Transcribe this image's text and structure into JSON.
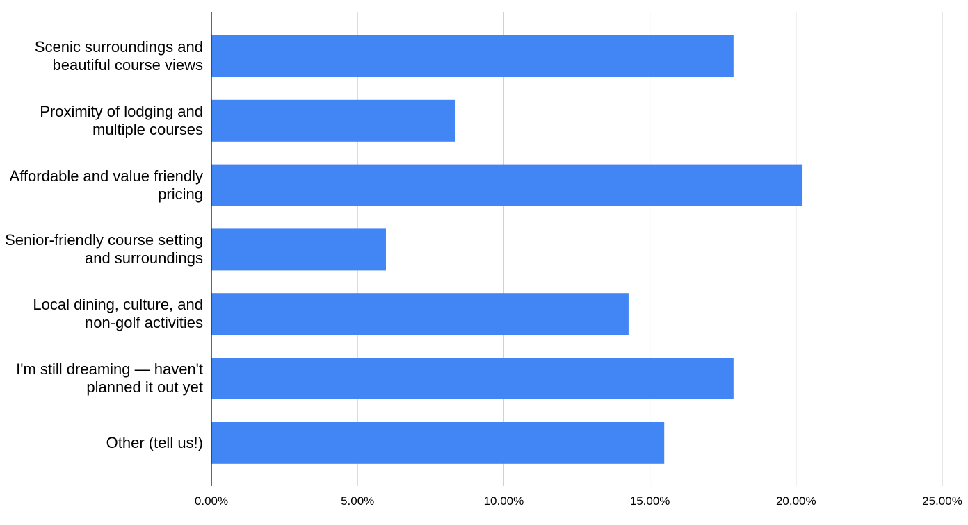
{
  "chart_data": {
    "type": "bar",
    "orientation": "horizontal",
    "categories": [
      "Scenic surroundings and beautiful course views",
      "Proximity of lodging and multiple courses",
      "Affordable and value friendly pricing",
      "Senior-friendly course setting and surroundings",
      "Local dining, culture, and non-golf activities",
      "I'm still dreaming — haven't planned it out yet",
      "Other (tell us!)"
    ],
    "values": [
      17.86,
      8.33,
      20.22,
      5.97,
      14.27,
      17.86,
      15.49
    ],
    "color": "#4285f4",
    "xlim": [
      0,
      25
    ],
    "xticks": [
      {
        "value": 0,
        "label": "0.00%"
      },
      {
        "value": 5,
        "label": "5.00%"
      },
      {
        "value": 10,
        "label": "10.00%"
      },
      {
        "value": 15,
        "label": "15.00%"
      },
      {
        "value": 20,
        "label": "20.00%"
      },
      {
        "value": 25,
        "label": "25.00%"
      }
    ],
    "grid": true
  }
}
